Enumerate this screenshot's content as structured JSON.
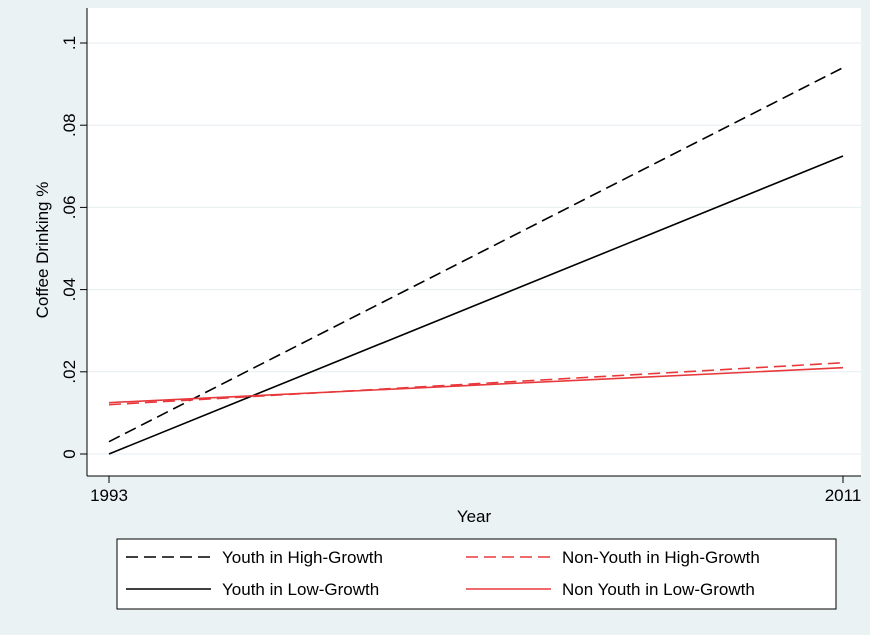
{
  "chart_data": {
    "type": "line",
    "xlabel": "Year",
    "ylabel": "Coffee Drinking %",
    "x": [
      1993,
      2011
    ],
    "xlim": [
      1993,
      2011
    ],
    "ylim": [
      0,
      0.1
    ],
    "x_ticks": [
      {
        "value": 1993,
        "label": "1993"
      },
      {
        "value": 2011,
        "label": "2011"
      }
    ],
    "y_ticks": [
      {
        "value": 0,
        "label": "0"
      },
      {
        "value": 0.02,
        "label": ".02"
      },
      {
        "value": 0.04,
        "label": ".04"
      },
      {
        "value": 0.06,
        "label": ".06"
      },
      {
        "value": 0.08,
        "label": ".08"
      },
      {
        "value": 0.1,
        "label": ".1"
      }
    ],
    "grid": true,
    "legend_position": "bottom",
    "series": [
      {
        "name": "Youth in High-Growth",
        "values": [
          0.003,
          0.094
        ],
        "color": "#000000",
        "dash": "dashed"
      },
      {
        "name": "Non-Youth in High-Growth",
        "values": [
          0.012,
          0.0222
        ],
        "color": "#e8383b",
        "dash": "dashed"
      },
      {
        "name": "Youth in Low-Growth",
        "values": [
          0.0,
          0.0725
        ],
        "color": "#000000",
        "dash": "solid"
      },
      {
        "name": "Non Youth in Low-Growth",
        "values": [
          0.0125,
          0.021
        ],
        "color": "#e8383b",
        "dash": "solid"
      }
    ]
  }
}
